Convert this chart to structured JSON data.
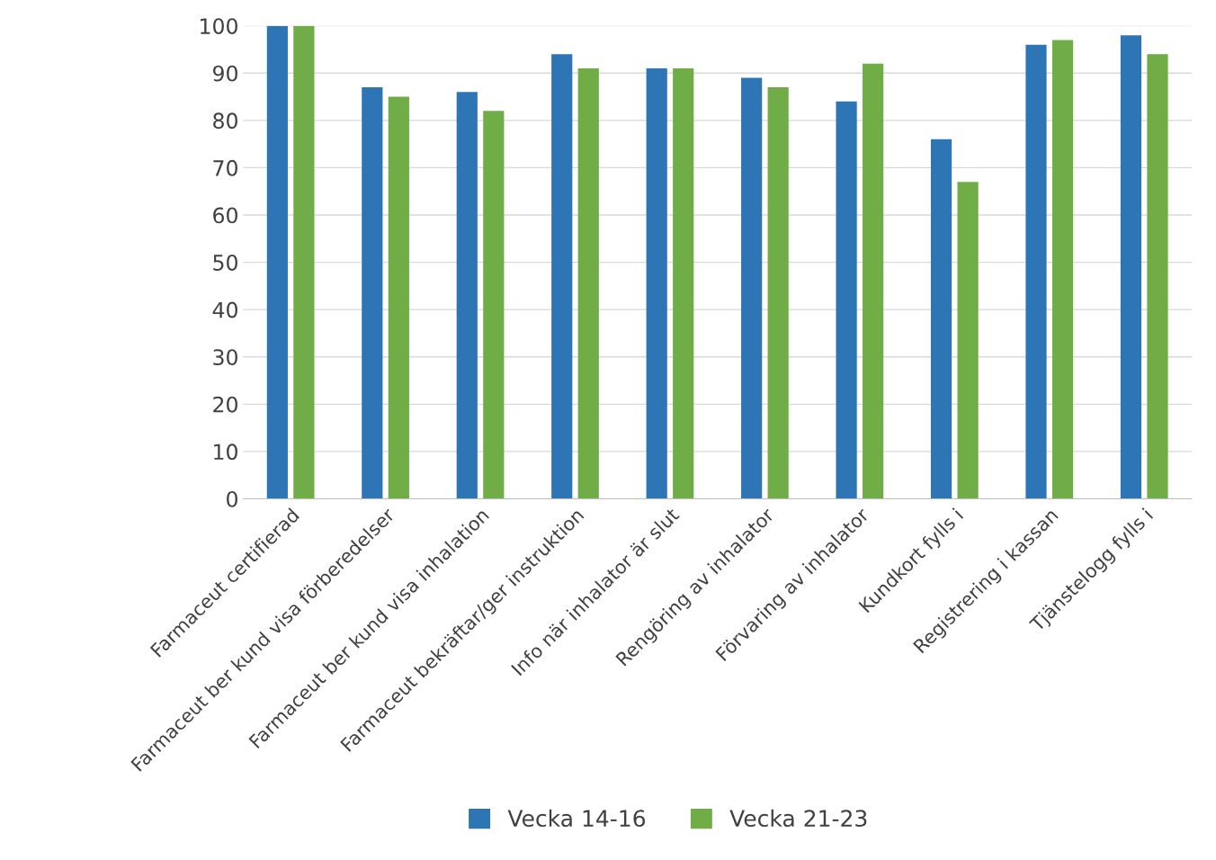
{
  "chart_data": {
    "type": "bar",
    "categories": [
      "Farmaceut certifierad",
      "Farmaceut ber kund visa förberedelser",
      "Farmaceut ber kund visa inhalation",
      "Farmaceut bekräftar/ger instruktion",
      "Info när inhalator är slut",
      "Rengöring av inhalator",
      "Förvaring av inhalator",
      "Kundkort fylls i",
      "Registrering i kassan",
      "Tjänstelogg fylls i"
    ],
    "series": [
      {
        "name": "Vecka 14-16",
        "color": "#2e75b6",
        "values": [
          100,
          87,
          86,
          94,
          91,
          89,
          84,
          76,
          96,
          98
        ]
      },
      {
        "name": "Vecka 21-23",
        "color": "#70ad47",
        "values": [
          100,
          85,
          82,
          91,
          91,
          87,
          92,
          67,
          97,
          94
        ]
      }
    ],
    "ylim": [
      0,
      100
    ],
    "yticks": [
      0,
      10,
      20,
      30,
      40,
      50,
      60,
      70,
      80,
      90,
      100
    ],
    "grid": "y",
    "legend": "bottom"
  }
}
